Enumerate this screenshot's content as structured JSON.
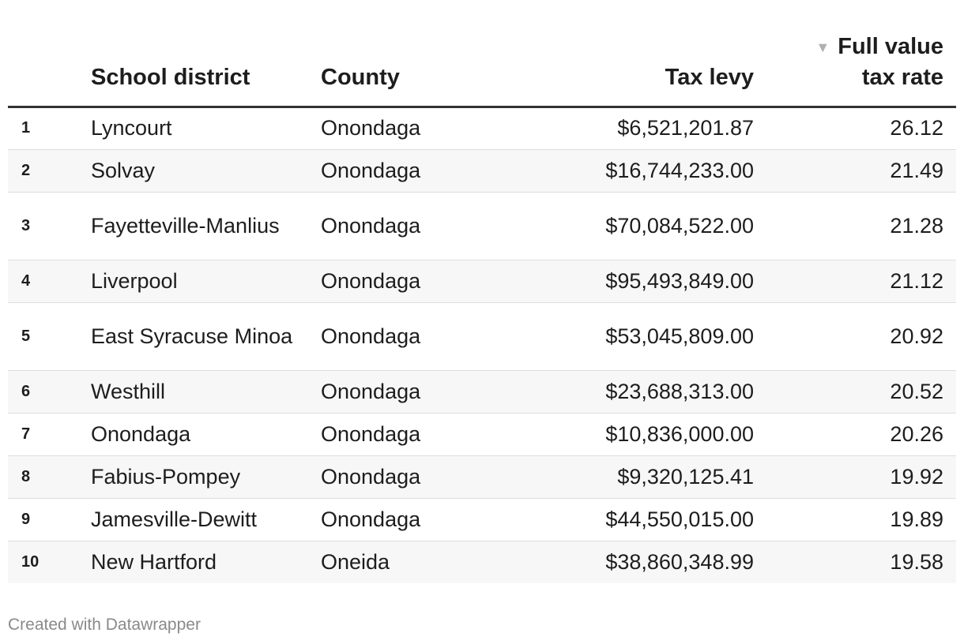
{
  "chart_data": {
    "type": "table",
    "columns": [
      "",
      "School district",
      "County",
      "Tax levy",
      "Full value tax rate"
    ],
    "header": {
      "district": "School district",
      "county": "County",
      "levy": "Tax levy",
      "rate_line1": "Full value",
      "rate_line2": "tax rate",
      "sort_indicator": "▼"
    },
    "sorted_by": "Full value tax rate",
    "sort_direction": "descending",
    "rows": [
      {
        "rank": "1",
        "district": "Lyncourt",
        "county": "Onondaga",
        "levy": "$6,521,201.87",
        "rate": "26.12"
      },
      {
        "rank": "2",
        "district": "Solvay",
        "county": "Onondaga",
        "levy": "$16,744,233.00",
        "rate": "21.49"
      },
      {
        "rank": "3",
        "district": "Fayetteville-Manlius",
        "county": "Onondaga",
        "levy": "$70,084,522.00",
        "rate": "21.28"
      },
      {
        "rank": "4",
        "district": "Liverpool",
        "county": "Onondaga",
        "levy": "$95,493,849.00",
        "rate": "21.12"
      },
      {
        "rank": "5",
        "district": "East Syracuse Minoa",
        "county": "Onondaga",
        "levy": "$53,045,809.00",
        "rate": "20.92"
      },
      {
        "rank": "6",
        "district": "Westhill",
        "county": "Onondaga",
        "levy": "$23,688,313.00",
        "rate": "20.52"
      },
      {
        "rank": "7",
        "district": "Onondaga",
        "county": "Onondaga",
        "levy": "$10,836,000.00",
        "rate": "20.26"
      },
      {
        "rank": "8",
        "district": "Fabius-Pompey",
        "county": "Onondaga",
        "levy": "$9,320,125.41",
        "rate": "19.92"
      },
      {
        "rank": "9",
        "district": "Jamesville-Dewitt",
        "county": "Onondaga",
        "levy": "$44,550,015.00",
        "rate": "19.89"
      },
      {
        "rank": "10",
        "district": "New Hartford",
        "county": "Oneida",
        "levy": "$38,860,348.99",
        "rate": "19.58"
      }
    ]
  },
  "footer": {
    "credit": "Created with Datawrapper"
  },
  "colors": {
    "header_rule": "#333333",
    "row_divider": "#dedede",
    "alt_row": "#f7f7f7",
    "sort_arrow": "#b0b0b0",
    "footer_text": "#8a8a8a"
  }
}
